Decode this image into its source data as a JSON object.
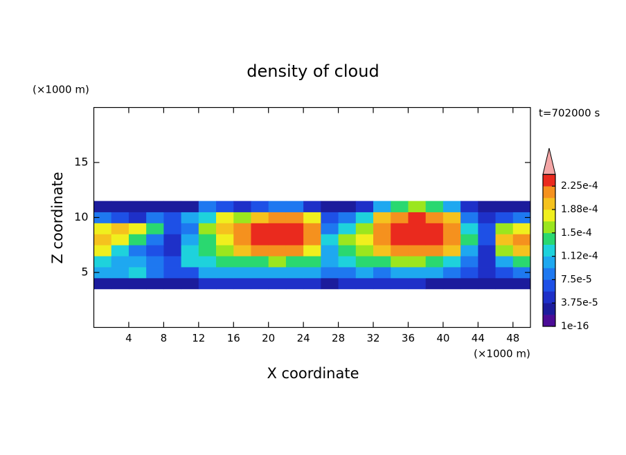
{
  "chart_data": {
    "type": "contour",
    "title": "density of cloud",
    "xlabel": "X coordinate",
    "ylabel": "Z coordinate",
    "xunit": "(×1000 m)",
    "yunit": "(×1000 m)",
    "annotation": "t=702000 s",
    "xlim": [
      0,
      50
    ],
    "ylim": [
      0,
      20
    ],
    "xticks": [
      4,
      8,
      12,
      16,
      20,
      24,
      28,
      32,
      36,
      40,
      44,
      48
    ],
    "yticks": [
      5,
      10,
      15
    ],
    "x": [
      1,
      3,
      5,
      7,
      9,
      11,
      13,
      15,
      17,
      19,
      21,
      23,
      25,
      27,
      29,
      31,
      33,
      35,
      37,
      39,
      41,
      43,
      45,
      47,
      49
    ],
    "z": [
      4,
      5,
      6,
      7,
      8,
      9,
      10,
      11
    ],
    "values": [
      [
        3e-05,
        3e-05,
        3e-05,
        3e-05,
        2e-05,
        3e-05,
        4e-05,
        4e-05,
        4e-05,
        4e-05,
        4e-05,
        4e-05,
        4e-05,
        3e-05,
        4e-05,
        4e-05,
        4e-05,
        4e-05,
        4e-05,
        3e-05,
        3e-05,
        2e-05,
        3e-05,
        3e-05,
        3e-05
      ],
      [
        0.00011,
        0.0001,
        0.00012,
        8e-05,
        6e-05,
        7e-05,
        0.0001,
        0.0001,
        0.0001,
        0.0001,
        0.0001,
        0.0001,
        0.0001,
        8e-05,
        9e-05,
        0.0001,
        9e-05,
        0.0001,
        0.0001,
        0.0001,
        8e-05,
        6e-05,
        4e-05,
        6e-05,
        9e-05
      ],
      [
        0.00012,
        0.0001,
        0.0001,
        8e-05,
        6e-05,
        0.00012,
        0.00012,
        0.00014,
        0.00014,
        0.00014,
        0.00016,
        0.00014,
        0.00014,
        0.0001,
        0.00012,
        0.00014,
        0.00014,
        0.00016,
        0.00016,
        0.00014,
        0.00012,
        8e-05,
        5e-05,
        0.0001,
        0.00014
      ],
      [
        0.00018,
        0.00012,
        8e-05,
        6e-05,
        4e-05,
        0.00012,
        0.00014,
        0.00016,
        0.0002,
        0.00022,
        0.00022,
        0.00022,
        0.00018,
        0.0001,
        0.00014,
        0.00016,
        0.0002,
        0.00022,
        0.00022,
        0.00022,
        0.0002,
        0.0001,
        5e-05,
        0.00016,
        0.0002
      ],
      [
        0.0002,
        0.00018,
        0.00014,
        8e-05,
        5e-05,
        0.0001,
        0.00014,
        0.00018,
        0.00022,
        0.00024,
        0.00024,
        0.00024,
        0.00022,
        0.00012,
        0.00016,
        0.00018,
        0.00022,
        0.00024,
        0.00024,
        0.00024,
        0.00022,
        0.00014,
        6e-05,
        0.0002,
        0.00022
      ],
      [
        0.00018,
        0.0002,
        0.00018,
        0.00014,
        6e-05,
        8e-05,
        0.00016,
        0.0002,
        0.00022,
        0.00024,
        0.00024,
        0.00024,
        0.00022,
        8e-05,
        0.00012,
        0.00016,
        0.00022,
        0.00024,
        0.00024,
        0.00024,
        0.00022,
        0.00012,
        6e-05,
        0.00016,
        0.00018
      ],
      [
        8e-05,
        6e-05,
        5e-05,
        8e-05,
        6e-05,
        0.0001,
        0.00012,
        0.00018,
        0.00016,
        0.0002,
        0.00022,
        0.00022,
        0.00018,
        6e-05,
        8e-05,
        0.00012,
        0.0002,
        0.00022,
        0.00023,
        0.00022,
        0.0002,
        8e-05,
        4e-05,
        6e-05,
        8e-05
      ],
      [
        3e-05,
        2e-05,
        2e-05,
        2e-05,
        3e-05,
        2e-05,
        8e-05,
        6e-05,
        4e-05,
        6e-05,
        8e-05,
        8e-05,
        5e-05,
        2e-05,
        3e-05,
        4e-05,
        0.0001,
        0.00014,
        0.00015,
        0.00014,
        0.0001,
        4e-05,
        2e-05,
        2e-05,
        3e-05
      ]
    ],
    "colorbar": {
      "levels": [
        1e-16,
        1.875e-05,
        3.75e-05,
        5.625e-05,
        7.5e-05,
        9.375e-05,
        0.0001125,
        0.00013125,
        0.00015,
        0.00016875,
        0.0001875,
        0.00020625,
        0.000225,
        0.00024375
      ],
      "colors": [
        "#4b0c96",
        "#1c1c9c",
        "#1e30c8",
        "#1e50e6",
        "#1e78f0",
        "#1ea8f0",
        "#1ed2dc",
        "#2ad870",
        "#9be61e",
        "#f0ef1e",
        "#f5c21e",
        "#f5911e",
        "#ea2a1e"
      ],
      "over_color": "#f4a6a6",
      "ticks": [
        1e-16,
        {
          "value": 3.75e-05,
          "label": "3.75e-5"
        },
        {
          "value": 7.5e-05,
          "label": "7.5e-5"
        },
        {
          "value": 0.0001125,
          "label": "1.12e-4"
        },
        {
          "value": 0.00015,
          "label": "1.5e-4"
        },
        {
          "value": 0.0001875,
          "label": "1.88e-4"
        },
        {
          "value": 0.000225,
          "label": "2.25e-4"
        }
      ]
    }
  }
}
